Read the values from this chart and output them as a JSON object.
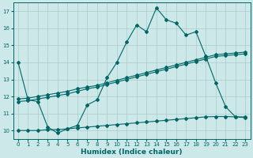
{
  "background_color": "#cce8e8",
  "grid_color": "#aacccc",
  "line_color": "#006666",
  "xlabel": "Humidex (Indice chaleur)",
  "xlim": [
    -0.5,
    23.5
  ],
  "ylim": [
    9.5,
    17.5
  ],
  "xticks": [
    0,
    1,
    2,
    3,
    4,
    5,
    6,
    7,
    8,
    9,
    10,
    11,
    12,
    13,
    14,
    15,
    16,
    17,
    18,
    19,
    20,
    21,
    22,
    23
  ],
  "yticks": [
    10,
    11,
    12,
    13,
    14,
    15,
    16,
    17
  ],
  "line1_x": [
    0,
    1,
    2,
    3,
    4,
    5,
    6,
    7,
    8,
    9,
    10,
    11,
    12,
    13,
    14,
    15,
    16,
    17,
    18,
    19,
    20,
    21,
    22,
    23
  ],
  "line1_y": [
    14.0,
    11.8,
    11.7,
    10.2,
    9.85,
    10.1,
    10.3,
    11.5,
    11.8,
    13.1,
    14.0,
    15.2,
    16.2,
    15.8,
    17.2,
    16.5,
    16.3,
    15.6,
    15.8,
    14.35,
    12.8,
    11.4,
    10.8,
    10.75
  ],
  "line2_x": [
    0,
    1,
    2,
    3,
    4,
    5,
    6,
    7,
    8,
    9,
    10,
    11,
    12,
    13,
    14,
    15,
    16,
    17,
    18,
    19,
    20,
    21,
    22,
    23
  ],
  "line2_y": [
    11.85,
    11.9,
    12.0,
    12.1,
    12.2,
    12.3,
    12.45,
    12.55,
    12.65,
    12.8,
    12.95,
    13.1,
    13.25,
    13.4,
    13.55,
    13.7,
    13.85,
    14.0,
    14.15,
    14.3,
    14.45,
    14.5,
    14.55,
    14.6
  ],
  "line3_x": [
    0,
    1,
    2,
    3,
    4,
    5,
    6,
    7,
    8,
    9,
    10,
    11,
    12,
    13,
    14,
    15,
    16,
    17,
    18,
    19,
    20,
    21,
    22,
    23
  ],
  "line3_y": [
    11.7,
    11.75,
    11.85,
    11.95,
    12.05,
    12.15,
    12.3,
    12.45,
    12.55,
    12.7,
    12.85,
    13.0,
    13.15,
    13.3,
    13.45,
    13.6,
    13.75,
    13.9,
    14.05,
    14.2,
    14.35,
    14.4,
    14.45,
    14.5
  ],
  "line4_x": [
    0,
    1,
    2,
    3,
    4,
    5,
    6,
    7,
    8,
    9,
    10,
    11,
    12,
    13,
    14,
    15,
    16,
    17,
    18,
    19,
    20,
    21,
    22,
    23
  ],
  "line4_y": [
    10.0,
    10.0,
    10.0,
    10.05,
    10.05,
    10.1,
    10.15,
    10.2,
    10.25,
    10.3,
    10.35,
    10.4,
    10.45,
    10.5,
    10.55,
    10.6,
    10.65,
    10.7,
    10.75,
    10.8,
    10.82,
    10.82,
    10.8,
    10.8
  ]
}
